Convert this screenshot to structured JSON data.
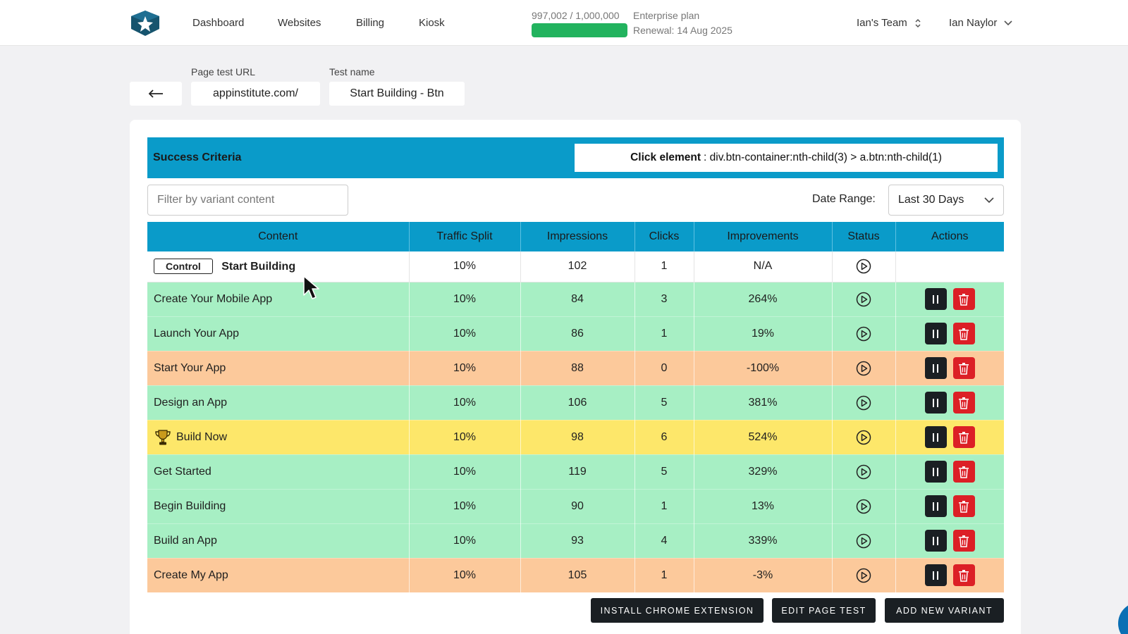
{
  "nav": {
    "links": [
      "Dashboard",
      "Websites",
      "Billing",
      "Kiosk"
    ],
    "usage_text": "997,002 / 1,000,000",
    "usage_fraction": 0.997,
    "plan": "Enterprise plan",
    "renewal": "Renewal: 14 Aug 2025",
    "team": "Ian's Team",
    "user": "Ian Naylor"
  },
  "test": {
    "url_label": "Page test URL",
    "url_value": "appinstitute.com/",
    "name_label": "Test name",
    "name_value": "Start Building - Btn"
  },
  "criteria": {
    "title": "Success Criteria",
    "type": "Click element",
    "selector": ": div.btn-container:nth-child(3) > a.btn:nth-child(1)"
  },
  "filter": {
    "placeholder": "Filter by variant content"
  },
  "date_range": {
    "label": "Date Range:",
    "value": "Last 30 Days"
  },
  "table": {
    "headers": [
      "Content",
      "Traffic Split",
      "Impressions",
      "Clicks",
      "Improvements",
      "Status",
      "Actions"
    ],
    "control": {
      "badge": "Control",
      "content": "Start Building",
      "split": "10%",
      "impressions": "102",
      "clicks": "1",
      "improvement": "N/A"
    },
    "rows": [
      {
        "content": "Create Your Mobile App",
        "split": "10%",
        "impressions": "84",
        "clicks": "3",
        "improvement": "264%"
      },
      {
        "content": "Launch Your App",
        "split": "10%",
        "impressions": "86",
        "clicks": "1",
        "improvement": "19%"
      },
      {
        "content": "Start Your App",
        "split": "10%",
        "impressions": "88",
        "clicks": "0",
        "improvement": "-100%"
      },
      {
        "content": "Design an App",
        "split": "10%",
        "impressions": "106",
        "clicks": "5",
        "improvement": "381%"
      },
      {
        "content": "Build Now",
        "split": "10%",
        "impressions": "98",
        "clicks": "6",
        "improvement": "524%"
      },
      {
        "content": "Get Started",
        "split": "10%",
        "impressions": "119",
        "clicks": "5",
        "improvement": "329%"
      },
      {
        "content": "Begin Building",
        "split": "10%",
        "impressions": "90",
        "clicks": "1",
        "improvement": "13%"
      },
      {
        "content": "Build an App",
        "split": "10%",
        "impressions": "93",
        "clicks": "4",
        "improvement": "339%"
      },
      {
        "content": "Create My App",
        "split": "10%",
        "impressions": "105",
        "clicks": "1",
        "improvement": "-3%"
      }
    ]
  },
  "buttons": {
    "install": "INSTALL CHROME EXTENSION",
    "edit": "EDIT PAGE TEST",
    "add": "ADD NEW VARIANT"
  },
  "colors": {
    "accent": "#0a9bc9",
    "winner": "#fde76a",
    "positive": "#a7efc4",
    "negative": "#fcc99b",
    "delete": "#dc1f26"
  }
}
